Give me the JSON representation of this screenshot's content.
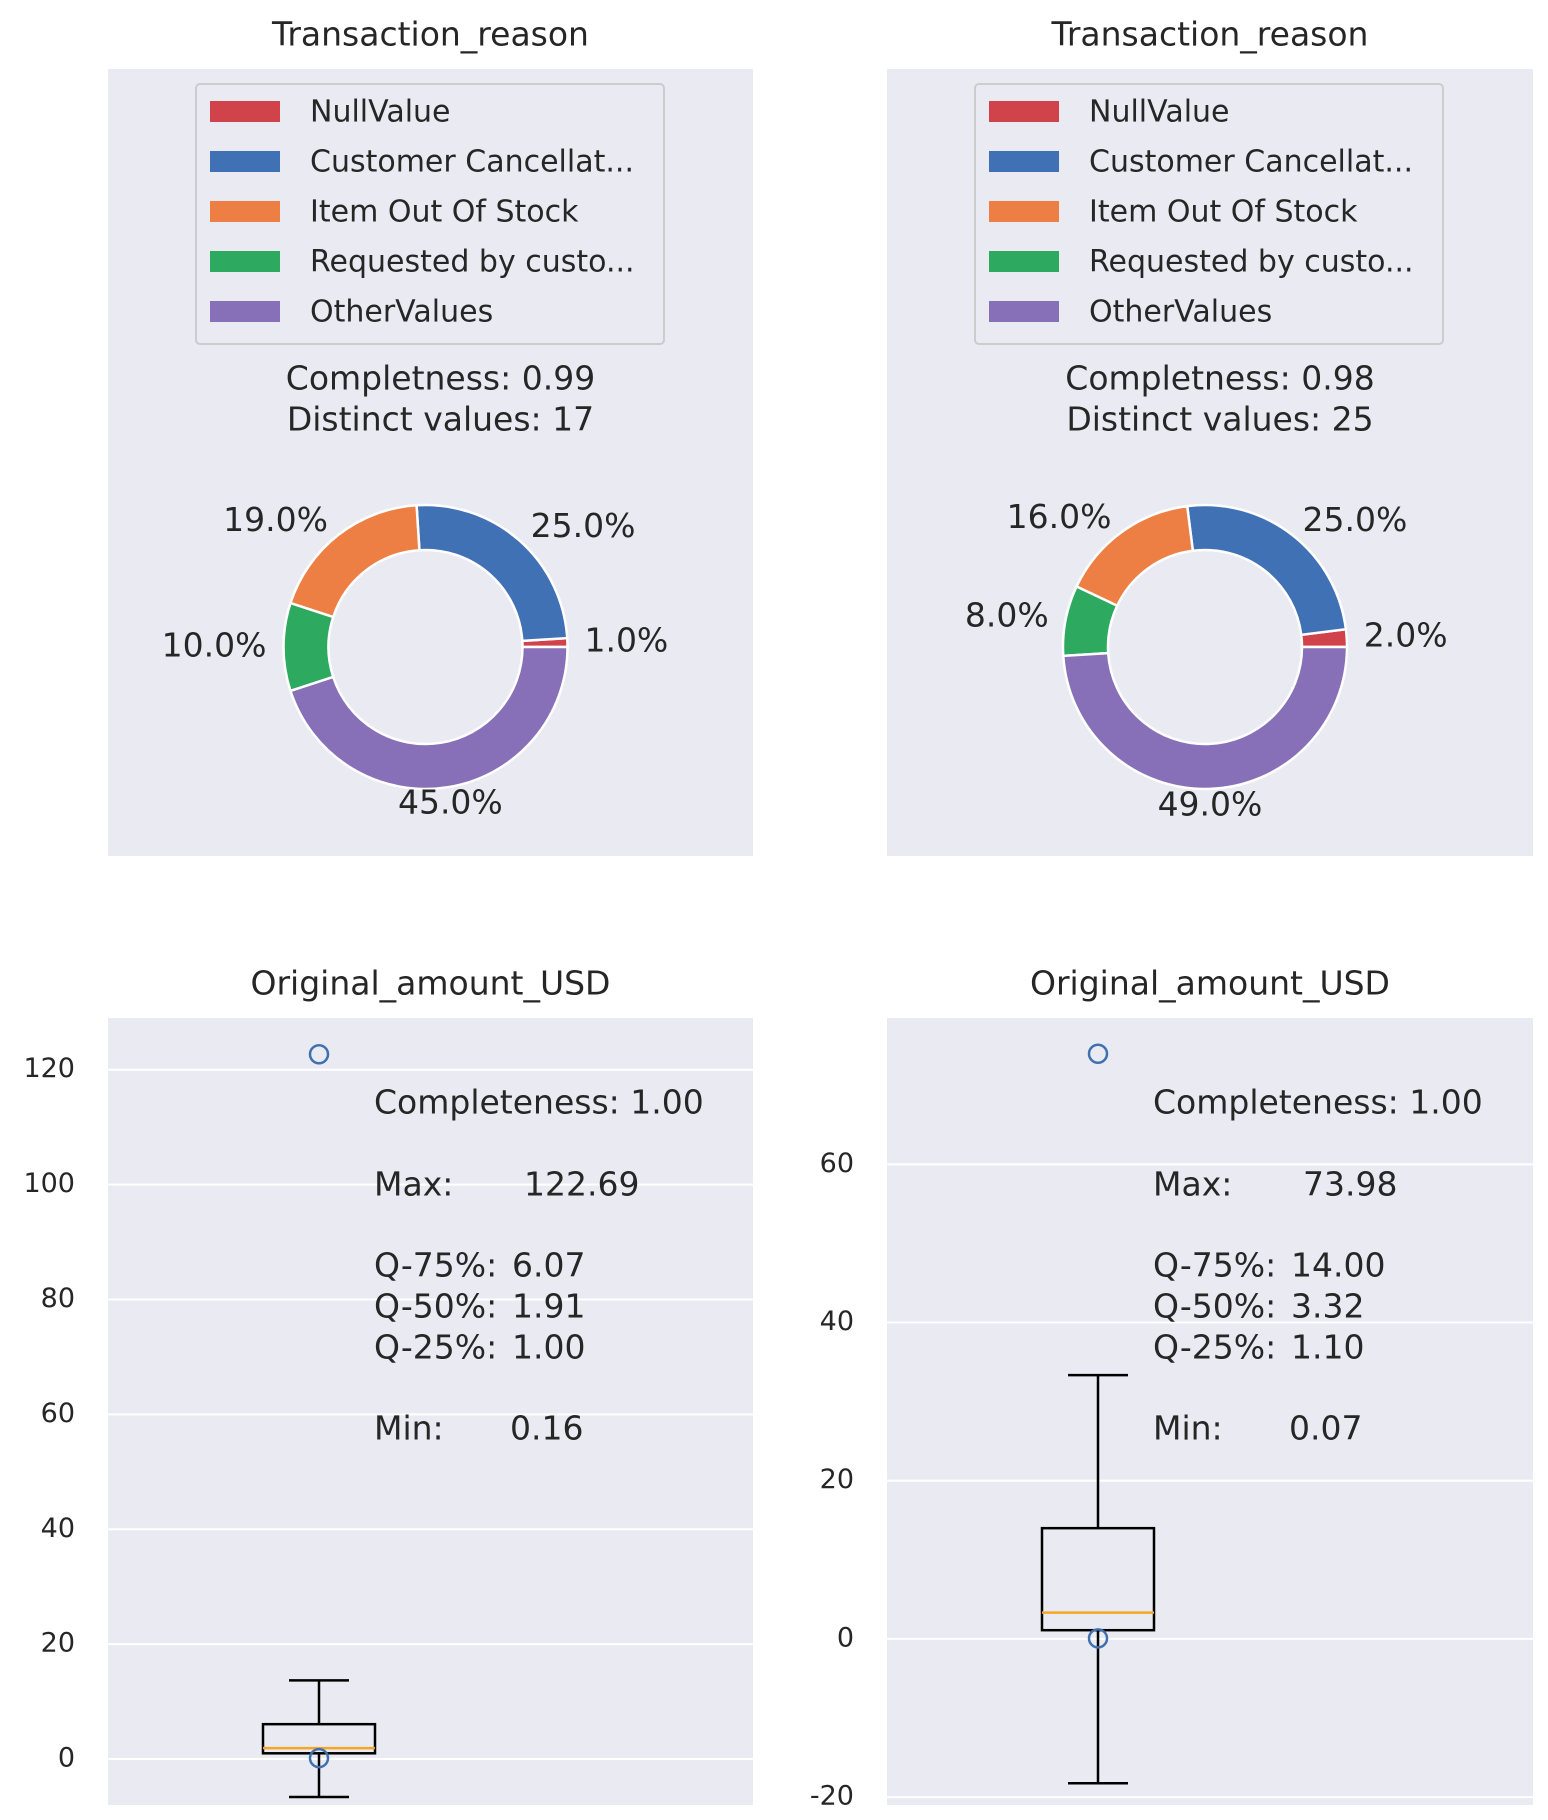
{
  "colors": {
    "panel_bg": "#EAEAF2",
    "grid": "#FFFFFF",
    "red": "#D1434B",
    "blue": "#4071B5",
    "orange": "#EE7F44",
    "green": "#2DAA5F",
    "purple": "#8770B8",
    "box_line": "#000000",
    "median": "#F5A623",
    "flier": "#4070B0"
  },
  "chart_data": [
    {
      "type": "pie",
      "variant": "donut",
      "title": "Transaction_reason",
      "info_lines": [
        "Completness: 0.99",
        "Distinct values: 17"
      ],
      "legend": {
        "placement": "top-center",
        "entries": [
          "NullValue",
          "Customer Cancellat...",
          "Item Out Of Stock",
          "Requested by custo...",
          "OtherValues"
        ]
      },
      "slices": [
        {
          "legend_index": 0,
          "value": 1.0,
          "label": "1.0%",
          "color": "#D1434B"
        },
        {
          "legend_index": 1,
          "value": 25.0,
          "label": "25.0%",
          "color": "#4071B5"
        },
        {
          "legend_index": 2,
          "value": 19.0,
          "label": "19.0%",
          "color": "#EE7F44"
        },
        {
          "legend_index": 3,
          "value": 10.0,
          "label": "10.0%",
          "color": "#2DAA5F"
        },
        {
          "legend_index": 4,
          "value": 45.0,
          "label": "45.0%",
          "color": "#8770B8"
        }
      ]
    },
    {
      "type": "pie",
      "variant": "donut",
      "title": "Transaction_reason",
      "info_lines": [
        "Completness: 0.98",
        "Distinct values: 25"
      ],
      "legend": {
        "placement": "top-center",
        "entries": [
          "NullValue",
          "Customer Cancellat...",
          "Item Out Of Stock",
          "Requested by custo...",
          "OtherValues"
        ]
      },
      "slices": [
        {
          "legend_index": 0,
          "value": 2.0,
          "label": "2.0%",
          "color": "#D1434B"
        },
        {
          "legend_index": 1,
          "value": 25.0,
          "label": "25.0%",
          "color": "#4071B5"
        },
        {
          "legend_index": 2,
          "value": 16.0,
          "label": "16.0%",
          "color": "#EE7F44"
        },
        {
          "legend_index": 3,
          "value": 8.0,
          "label": "8.0%",
          "color": "#2DAA5F"
        },
        {
          "legend_index": 4,
          "value": 49.0,
          "label": "49.0%",
          "color": "#8770B8"
        }
      ]
    },
    {
      "type": "box",
      "title": "Original_amount_USD",
      "ylim": [
        -8,
        129
      ],
      "yticks": [
        0,
        20,
        40,
        60,
        80,
        100,
        120
      ],
      "grid": true,
      "box": {
        "whisker_low": -6.6,
        "q1": 1.0,
        "median": 1.91,
        "q3": 6.07,
        "whisker_high": 13.7
      },
      "fliers": [
        122.69,
        0.16
      ],
      "stats": [
        {
          "label": "Completeness: 1.00",
          "value": ""
        },
        {
          "label": "Max:",
          "value": "122.69"
        },
        {
          "label": "Q-75%:",
          "value": "6.07"
        },
        {
          "label": "Q-50%:",
          "value": "1.91"
        },
        {
          "label": "Q-25%:",
          "value": "1.00"
        },
        {
          "label": "Min:",
          "value": "0.16"
        }
      ]
    },
    {
      "type": "box",
      "title": "Original_amount_USD",
      "ylim": [
        -21,
        78.5
      ],
      "yticks": [
        -20,
        0,
        20,
        40,
        60
      ],
      "grid": true,
      "box": {
        "whisker_low": -18.25,
        "q1": 1.1,
        "median": 3.32,
        "q3": 14.0,
        "whisker_high": 33.35
      },
      "fliers": [
        73.98,
        0.07
      ],
      "stats": [
        {
          "label": "Completeness: 1.00",
          "value": ""
        },
        {
          "label": "Max:",
          "value": "73.98"
        },
        {
          "label": "Q-75%:",
          "value": "14.00"
        },
        {
          "label": "Q-50%:",
          "value": "3.32"
        },
        {
          "label": "Q-25%:",
          "value": "1.10"
        },
        {
          "label": "Min:",
          "value": "0.07"
        }
      ]
    }
  ]
}
